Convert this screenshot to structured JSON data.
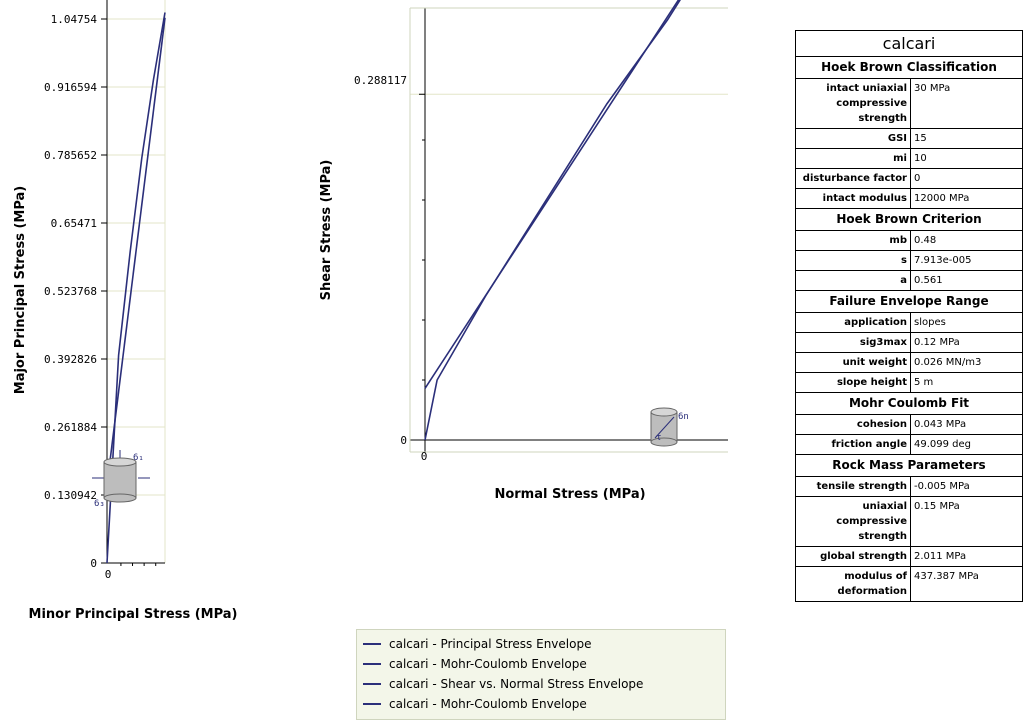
{
  "chart_data": [
    {
      "type": "line",
      "xlabel": "Minor Principal Stress (MPa)",
      "ylabel": "Major Principal Stress (MPa)",
      "ylim": [
        0,
        1.04754
      ],
      "y_ticks": [
        "0",
        "0.130942",
        "0.261884",
        "0.392826",
        "0.523768",
        "0.65471",
        "0.785652",
        "0.916594",
        "1.04754"
      ],
      "x_ticks": [
        "0"
      ],
      "grid": true,
      "series": [
        {
          "name": "calcari - Principal Stress Envelope",
          "x": [
            0,
            0.01,
            0.02,
            0.03,
            0.04,
            0.05
          ],
          "y": [
            0,
            0.4,
            0.6,
            0.78,
            0.93,
            1.06
          ]
        },
        {
          "name": "calcari - Mohr-Coulomb Envelope",
          "x": [
            0,
            0.05
          ],
          "y": [
            0.15,
            1.05
          ]
        }
      ],
      "annotation_labels": {
        "sigma1": "6₁",
        "sigma3": "6₃"
      }
    },
    {
      "type": "line",
      "xlabel": "Normal Stress (MPa)",
      "ylabel": "Shear Stress (MPa)",
      "y_ticks": [
        "0",
        "0.288117"
      ],
      "x_ticks": [
        "0"
      ],
      "grid": true,
      "series": [
        {
          "name": "calcari - Shear vs. Normal Stress Envelope",
          "x": [
            0,
            0.02,
            0.1,
            0.2,
            0.3,
            0.4,
            0.5
          ],
          "y": [
            0,
            0.05,
            0.12,
            0.2,
            0.28,
            0.35,
            0.43
          ]
        },
        {
          "name": "calcari - Mohr-Coulomb Envelope",
          "x": [
            0,
            0.5
          ],
          "y": [
            0.043,
            0.43
          ]
        }
      ],
      "annotation_labels": {
        "sigma_n": "6n",
        "tau": "τ"
      }
    }
  ],
  "legend": {
    "items": [
      "calcari - Principal Stress Envelope",
      "calcari - Mohr-Coulomb Envelope",
      "calcari - Shear vs. Normal Stress Envelope",
      "calcari - Mohr-Coulomb Envelope"
    ],
    "line_color": "#2b2f7a"
  },
  "props": {
    "title": "calcari",
    "sections": [
      {
        "header": "Hoek Brown Classification",
        "rows": [
          [
            "intact uniaxial compressive strength",
            "30 MPa"
          ],
          [
            "GSI",
            "15"
          ],
          [
            "mi",
            "10"
          ],
          [
            "disturbance factor",
            "0"
          ],
          [
            "intact modulus",
            "12000 MPa"
          ]
        ]
      },
      {
        "header": "Hoek Brown Criterion",
        "rows": [
          [
            "mb",
            "0.48"
          ],
          [
            "s",
            "7.913e-005"
          ],
          [
            "a",
            "0.561"
          ]
        ]
      },
      {
        "header": "Failure Envelope Range",
        "rows": [
          [
            "application",
            "slopes"
          ],
          [
            "sig3max",
            "0.12 MPa"
          ],
          [
            "unit weight",
            "0.026 MN/m3"
          ],
          [
            "slope height",
            "5 m"
          ]
        ]
      },
      {
        "header": "Mohr Coulomb Fit",
        "rows": [
          [
            "cohesion",
            "0.043 MPa"
          ],
          [
            "friction angle",
            "49.099 deg"
          ]
        ]
      },
      {
        "header": "Rock Mass Parameters",
        "rows": [
          [
            "tensile strength",
            "-0.005 MPa"
          ],
          [
            "uniaxial compressive strength",
            "0.15 MPa"
          ],
          [
            "global strength",
            "2.011 MPa"
          ],
          [
            "modulus of deformation",
            "437.387 MPa"
          ]
        ]
      }
    ]
  },
  "colors": {
    "series": "#2b2f7a",
    "grid": "#e3e6c8",
    "icon_fill": "#bdbdbd"
  }
}
